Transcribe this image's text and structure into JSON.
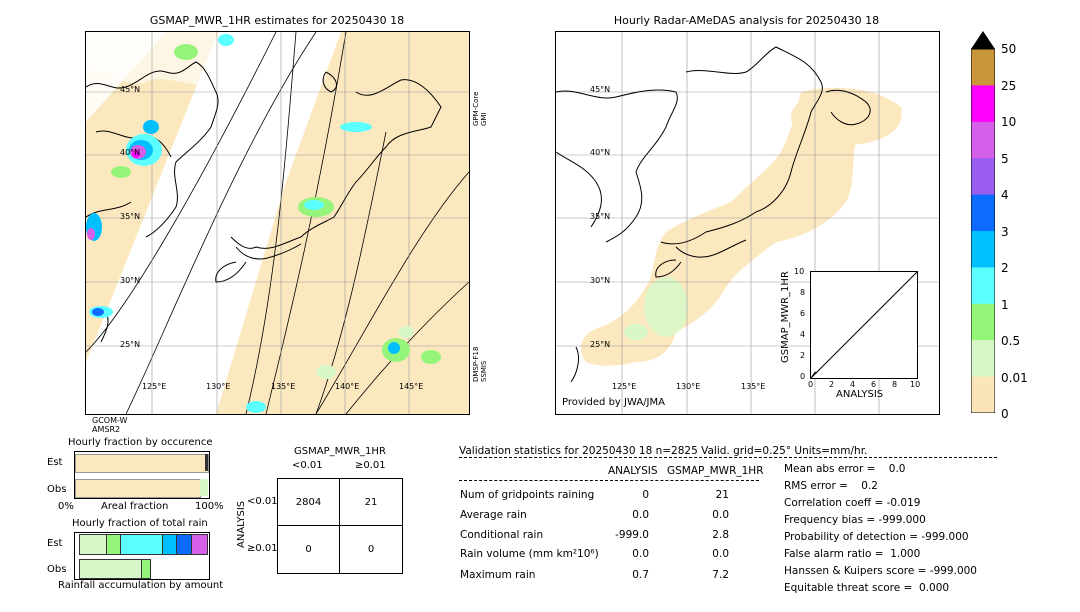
{
  "left_map": {
    "title": "GSMAP_MWR_1HR estimates for 20250430 18",
    "lat_labels": [
      "45°N",
      "40°N",
      "35°N",
      "30°N",
      "25°N"
    ],
    "lon_labels": [
      "125°E",
      "130°E",
      "135°E",
      "140°E",
      "145°E"
    ],
    "side_label_top": "GPM-Core GMI",
    "side_label_bottom": "DMSP-F18 SSMIS",
    "bottom_label": "GCOM-W AMSR2"
  },
  "right_map": {
    "title": "Hourly Radar-AMeDAS analysis for 20250430 18",
    "lat_labels": [
      "45°N",
      "40°N",
      "35°N",
      "30°N",
      "25°N"
    ],
    "lon_labels": [
      "125°E",
      "130°E",
      "135°E"
    ],
    "credit": "Provided by JWA/JMA"
  },
  "colorbar": {
    "labels": [
      "50",
      "25",
      "10",
      "5",
      "4",
      "3",
      "2",
      "1",
      "0.5",
      "0.01",
      "0"
    ],
    "colors": [
      "#c8953a",
      "#ff00ff",
      "#d55fe8",
      "#9a5ff0",
      "#0c6cff",
      "#00bfff",
      "#5cffff",
      "#94f57a",
      "#d8f7c8",
      "#fbe5b8"
    ]
  },
  "inset": {
    "ylabel": "GSMAP_MWR_1HR",
    "xlabel": "ANALYSIS",
    "ticks": [
      "0",
      "2",
      "4",
      "6",
      "8",
      "10"
    ],
    "ytick_labels": [
      "0",
      "2",
      "4",
      "6",
      "8",
      "10"
    ]
  },
  "fraction_occurrence": {
    "title": "Hourly fraction by occurence",
    "row1": "Est",
    "row2": "Obs",
    "left_axis": "0%",
    "center_axis": "Areal fraction",
    "right_axis": "100%"
  },
  "fraction_amount": {
    "title": "Hourly fraction of total rain",
    "row1": "Est",
    "row2": "Obs",
    "footer": "Rainfall accumulation by amount"
  },
  "contingency": {
    "title": "GSMAP_MWR_1HR",
    "col1": "<0.01",
    "col2": "≥0.01",
    "row_axis": "ANALYSIS",
    "row1": "<0.01",
    "row2": "≥0.01",
    "cells": [
      "2804",
      "21",
      "0",
      "0"
    ]
  },
  "validation": {
    "header": "Validation statistics for 20250430 18  n=2825 Valid. grid=0.25°  Units=mm/hr.",
    "col_analysis": "ANALYSIS",
    "col_gsmap": "GSMAP_MWR_1HR",
    "rows": [
      {
        "label": "Num of gridpoints raining",
        "analysis": "0",
        "gsmap": "21"
      },
      {
        "label": "Average rain",
        "analysis": "0.0",
        "gsmap": "0.0"
      },
      {
        "label": "Conditional rain",
        "analysis": "-999.0",
        "gsmap": "2.8"
      },
      {
        "label": "Rain volume (mm km²10⁶)",
        "analysis": "0.0",
        "gsmap": "0.0"
      },
      {
        "label": "Maximum rain",
        "analysis": "0.7",
        "gsmap": "7.2"
      }
    ],
    "scores": [
      "Mean abs error =    0.0",
      "RMS error =    0.2",
      "Correlation coeff = -0.019",
      "Frequency bias = -999.000",
      "Probability of detection = -999.000",
      "False alarm ratio =  1.000",
      "Hanssen & Kuipers score = -999.000",
      "Equitable threat score =  0.000"
    ]
  }
}
